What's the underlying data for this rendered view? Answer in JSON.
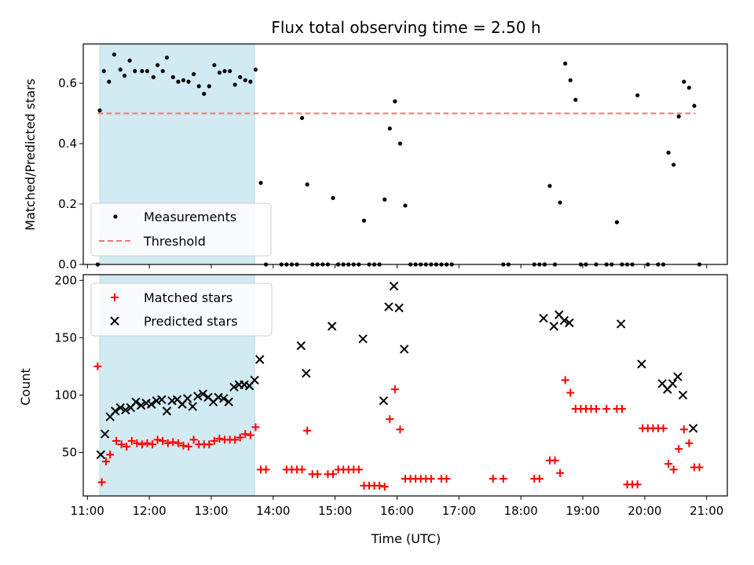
{
  "figure": {
    "title": "Flux total observing time = 2.50 h"
  },
  "chart_data": [
    {
      "type": "scatter",
      "panel": "top",
      "ylabel": "Matched/Predicted stars",
      "xlabel": "",
      "xlim": [
        "10:56",
        "21:20"
      ],
      "ylim": [
        0,
        0.73
      ],
      "y_ticks": [
        "0.0",
        "0.2",
        "0.4",
        "0.6"
      ],
      "shaded_interval": {
        "start": "11:12",
        "end": "13:42",
        "color": "#add8e6"
      },
      "threshold": {
        "name": "Threshold",
        "value": 0.5,
        "x_start": "11:10",
        "x_end": "20:49",
        "color": "#ff7070"
      },
      "legend": {
        "placement": "lower-left",
        "entries": [
          "Measurements",
          "Threshold"
        ]
      },
      "series": [
        {
          "name": "Measurements",
          "color": "#000000",
          "points": [
            [
              "11:10",
              0
            ],
            [
              "11:12",
              0.51
            ],
            [
              "11:16",
              0.64
            ],
            [
              "11:21",
              0.605
            ],
            [
              "11:26",
              0.695
            ],
            [
              "11:32",
              0.645
            ],
            [
              "11:36",
              0.625
            ],
            [
              "11:41",
              0.675
            ],
            [
              "11:46",
              0.64
            ],
            [
              "11:53",
              0.64
            ],
            [
              "11:58",
              0.64
            ],
            [
              "12:04",
              0.62
            ],
            [
              "12:08",
              0.66
            ],
            [
              "12:13",
              0.64
            ],
            [
              "12:17",
              0.685
            ],
            [
              "12:23",
              0.62
            ],
            [
              "12:28",
              0.605
            ],
            [
              "12:33",
              0.61
            ],
            [
              "12:38",
              0.605
            ],
            [
              "12:43",
              0.63
            ],
            [
              "12:48",
              0.59
            ],
            [
              "12:53",
              0.565
            ],
            [
              "12:58",
              0.59
            ],
            [
              "13:03",
              0.66
            ],
            [
              "13:08",
              0.635
            ],
            [
              "13:13",
              0.64
            ],
            [
              "13:18",
              0.64
            ],
            [
              "13:23",
              0.595
            ],
            [
              "13:28",
              0.62
            ],
            [
              "13:33",
              0.61
            ],
            [
              "13:38",
              0.605
            ],
            [
              "13:43",
              0.645
            ],
            [
              "13:48",
              0.27
            ],
            [
              "13:53",
              0
            ],
            [
              "14:08",
              0
            ],
            [
              "14:13",
              0
            ],
            [
              "14:18",
              0
            ],
            [
              "14:23",
              0
            ],
            [
              "14:28",
              0.485
            ],
            [
              "14:33",
              0.265
            ],
            [
              "14:38",
              0
            ],
            [
              "14:43",
              0
            ],
            [
              "14:48",
              0
            ],
            [
              "14:53",
              0
            ],
            [
              "14:58",
              0.22
            ],
            [
              "15:03",
              0
            ],
            [
              "15:08",
              0
            ],
            [
              "15:13",
              0
            ],
            [
              "15:18",
              0
            ],
            [
              "15:23",
              0
            ],
            [
              "15:28",
              0.145
            ],
            [
              "15:33",
              0
            ],
            [
              "15:38",
              0
            ],
            [
              "15:43",
              0
            ],
            [
              "15:48",
              0.215
            ],
            [
              "15:53",
              0.45
            ],
            [
              "15:58",
              0.54
            ],
            [
              "16:03",
              0.4
            ],
            [
              "16:08",
              0.195
            ],
            [
              "16:13",
              0
            ],
            [
              "16:18",
              0
            ],
            [
              "16:23",
              0
            ],
            [
              "16:28",
              0
            ],
            [
              "16:33",
              0
            ],
            [
              "16:38",
              0
            ],
            [
              "16:43",
              0
            ],
            [
              "16:48",
              0
            ],
            [
              "16:53",
              0
            ],
            [
              "17:43",
              0
            ],
            [
              "17:48",
              0
            ],
            [
              "18:13",
              0
            ],
            [
              "18:18",
              0
            ],
            [
              "18:23",
              0
            ],
            [
              "18:28",
              0.26
            ],
            [
              "18:33",
              0
            ],
            [
              "18:38",
              0.205
            ],
            [
              "18:43",
              0.665
            ],
            [
              "18:48",
              0.61
            ],
            [
              "18:53",
              0.545
            ],
            [
              "18:58",
              0
            ],
            [
              "19:03",
              0
            ],
            [
              "19:13",
              0
            ],
            [
              "19:23",
              0
            ],
            [
              "19:28",
              0
            ],
            [
              "19:33",
              0.14
            ],
            [
              "19:38",
              0
            ],
            [
              "19:43",
              0
            ],
            [
              "19:48",
              0
            ],
            [
              "19:53",
              0.56
            ],
            [
              "20:03",
              0
            ],
            [
              "20:13",
              0
            ],
            [
              "20:18",
              0
            ],
            [
              "20:23",
              0.37
            ],
            [
              "20:28",
              0.33
            ],
            [
              "20:33",
              0.49
            ],
            [
              "20:38",
              0.605
            ],
            [
              "20:43",
              0.585
            ],
            [
              "20:48",
              0.525
            ],
            [
              "20:53",
              0
            ]
          ]
        }
      ]
    },
    {
      "type": "scatter",
      "panel": "bottom",
      "ylabel": "Count",
      "xlabel": "Time (UTC)",
      "xlim": [
        "10:56",
        "21:20"
      ],
      "ylim": [
        12,
        205
      ],
      "x_ticks": [
        "11:00",
        "12:00",
        "13:00",
        "14:00",
        "15:00",
        "16:00",
        "17:00",
        "18:00",
        "19:00",
        "20:00",
        "21:00"
      ],
      "y_ticks": [
        "50",
        "100",
        "150",
        "200"
      ],
      "shaded_interval": {
        "start": "11:12",
        "end": "13:42",
        "color": "#add8e6"
      },
      "legend": {
        "placement": "upper-left",
        "entries": [
          "Matched stars",
          "Predicted stars"
        ]
      },
      "series": [
        {
          "name": "Matched stars",
          "marker": "plus",
          "color": "#ff0000",
          "points": [
            [
              "11:10",
              125
            ],
            [
              "11:14",
              24
            ],
            [
              "11:18",
              42
            ],
            [
              "11:22",
              48
            ],
            [
              "11:28",
              60
            ],
            [
              "11:33",
              57
            ],
            [
              "11:38",
              55
            ],
            [
              "11:43",
              60
            ],
            [
              "11:48",
              58
            ],
            [
              "11:53",
              57
            ],
            [
              "11:58",
              58
            ],
            [
              "12:03",
              57
            ],
            [
              "12:08",
              61
            ],
            [
              "12:13",
              60
            ],
            [
              "12:18",
              58
            ],
            [
              "12:23",
              59
            ],
            [
              "12:28",
              58
            ],
            [
              "12:33",
              56
            ],
            [
              "12:38",
              55
            ],
            [
              "12:43",
              61
            ],
            [
              "12:48",
              57
            ],
            [
              "12:53",
              57
            ],
            [
              "12:58",
              57
            ],
            [
              "13:03",
              60
            ],
            [
              "13:08",
              62
            ],
            [
              "13:13",
              61
            ],
            [
              "13:18",
              61
            ],
            [
              "13:23",
              61
            ],
            [
              "13:28",
              63
            ],
            [
              "13:33",
              66
            ],
            [
              "13:38",
              65
            ],
            [
              "13:43",
              72
            ],
            [
              "13:48",
              35
            ],
            [
              "13:53",
              35
            ],
            [
              "14:13",
              35
            ],
            [
              "14:18",
              35
            ],
            [
              "14:23",
              35
            ],
            [
              "14:28",
              35
            ],
            [
              "14:33",
              69
            ],
            [
              "14:38",
              31
            ],
            [
              "14:43",
              31
            ],
            [
              "14:53",
              31
            ],
            [
              "14:58",
              31
            ],
            [
              "15:03",
              35
            ],
            [
              "15:08",
              35
            ],
            [
              "15:13",
              35
            ],
            [
              "15:18",
              35
            ],
            [
              "15:23",
              35
            ],
            [
              "15:28",
              21
            ],
            [
              "15:33",
              21
            ],
            [
              "15:38",
              21
            ],
            [
              "15:43",
              21
            ],
            [
              "15:48",
              20
            ],
            [
              "15:53",
              79
            ],
            [
              "15:58",
              105
            ],
            [
              "16:03",
              70
            ],
            [
              "16:08",
              27
            ],
            [
              "16:13",
              27
            ],
            [
              "16:18",
              27
            ],
            [
              "16:23",
              27
            ],
            [
              "16:28",
              27
            ],
            [
              "16:33",
              27
            ],
            [
              "16:43",
              27
            ],
            [
              "16:48",
              27
            ],
            [
              "17:33",
              27
            ],
            [
              "17:43",
              27
            ],
            [
              "18:13",
              27
            ],
            [
              "18:18",
              27
            ],
            [
              "18:28",
              43
            ],
            [
              "18:33",
              43
            ],
            [
              "18:38",
              32
            ],
            [
              "18:43",
              113
            ],
            [
              "18:48",
              102
            ],
            [
              "18:53",
              88
            ],
            [
              "18:58",
              88
            ],
            [
              "19:03",
              88
            ],
            [
              "19:08",
              88
            ],
            [
              "19:13",
              88
            ],
            [
              "19:23",
              88
            ],
            [
              "19:33",
              88
            ],
            [
              "19:38",
              88
            ],
            [
              "19:43",
              22
            ],
            [
              "19:48",
              22
            ],
            [
              "19:53",
              22
            ],
            [
              "19:58",
              71
            ],
            [
              "20:03",
              71
            ],
            [
              "20:08",
              71
            ],
            [
              "20:13",
              71
            ],
            [
              "20:18",
              71
            ],
            [
              "20:23",
              40
            ],
            [
              "20:28",
              35
            ],
            [
              "20:33",
              53
            ],
            [
              "20:38",
              70
            ],
            [
              "20:43",
              58
            ],
            [
              "20:48",
              37
            ],
            [
              "20:53",
              37
            ]
          ]
        },
        {
          "name": "Predicted stars",
          "marker": "x",
          "color": "#000000",
          "points": [
            [
              "11:13",
              48
            ],
            [
              "11:17",
              66
            ],
            [
              "11:22",
              81
            ],
            [
              "11:27",
              86
            ],
            [
              "11:32",
              89
            ],
            [
              "11:37",
              87
            ],
            [
              "11:42",
              89
            ],
            [
              "11:47",
              94
            ],
            [
              "11:52",
              91
            ],
            [
              "11:57",
              93
            ],
            [
              "12:02",
              92
            ],
            [
              "12:07",
              95
            ],
            [
              "12:12",
              96
            ],
            [
              "12:17",
              86
            ],
            [
              "12:22",
              95
            ],
            [
              "12:27",
              96
            ],
            [
              "12:32",
              92
            ],
            [
              "12:37",
              97
            ],
            [
              "12:42",
              90
            ],
            [
              "12:47",
              99
            ],
            [
              "12:52",
              101
            ],
            [
              "12:57",
              98
            ],
            [
              "13:02",
              94
            ],
            [
              "13:07",
              98
            ],
            [
              "13:12",
              97
            ],
            [
              "13:17",
              94
            ],
            [
              "13:22",
              107
            ],
            [
              "13:27",
              109
            ],
            [
              "13:32",
              109
            ],
            [
              "13:37",
              108
            ],
            [
              "13:42",
              113
            ],
            [
              "13:47",
              131
            ],
            [
              "14:27",
              143
            ],
            [
              "14:32",
              119
            ],
            [
              "14:57",
              160
            ],
            [
              "15:27",
              149
            ],
            [
              "15:47",
              95
            ],
            [
              "15:52",
              177
            ],
            [
              "15:57",
              195
            ],
            [
              "16:02",
              176
            ],
            [
              "16:07",
              140
            ],
            [
              "18:22",
              167
            ],
            [
              "18:32",
              160
            ],
            [
              "18:37",
              170
            ],
            [
              "18:42",
              165
            ],
            [
              "18:47",
              163
            ],
            [
              "19:37",
              162
            ],
            [
              "19:57",
              127
            ],
            [
              "20:17",
              110
            ],
            [
              "20:22",
              105
            ],
            [
              "20:27",
              110
            ],
            [
              "20:32",
              116
            ],
            [
              "20:37",
              100
            ],
            [
              "20:47",
              71
            ]
          ]
        }
      ]
    }
  ]
}
